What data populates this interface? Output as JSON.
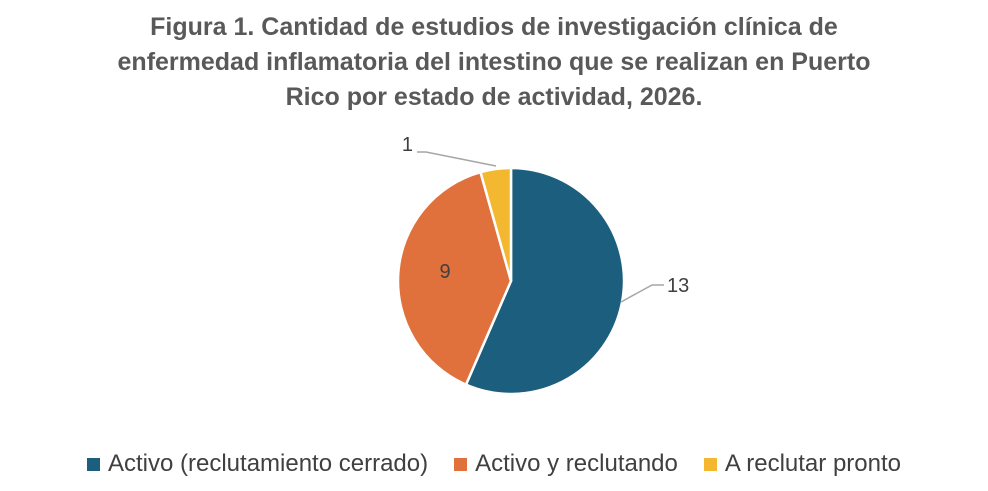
{
  "chart_data": {
    "type": "pie",
    "title_lines": [
      "Figura 1. Cantidad de estudios de investigación clínica de",
      "enfermedad inflamatoria del intestino que se realizan en Puerto",
      "Rico por estado de actividad, 2026."
    ],
    "slices": [
      {
        "label": "Activo (reclutamiento cerrado)",
        "value": 13,
        "color": "#1b5e7e"
      },
      {
        "label": "Activo y reclutando",
        "value": 9,
        "color": "#e0713c"
      },
      {
        "label": "A reclutar pronto",
        "value": 1,
        "color": "#f3b82f"
      }
    ],
    "start_angle": "12 o'clock",
    "direction": "clockwise",
    "legend_position": "bottom",
    "data_labels": [
      "13",
      "9",
      "1"
    ]
  }
}
